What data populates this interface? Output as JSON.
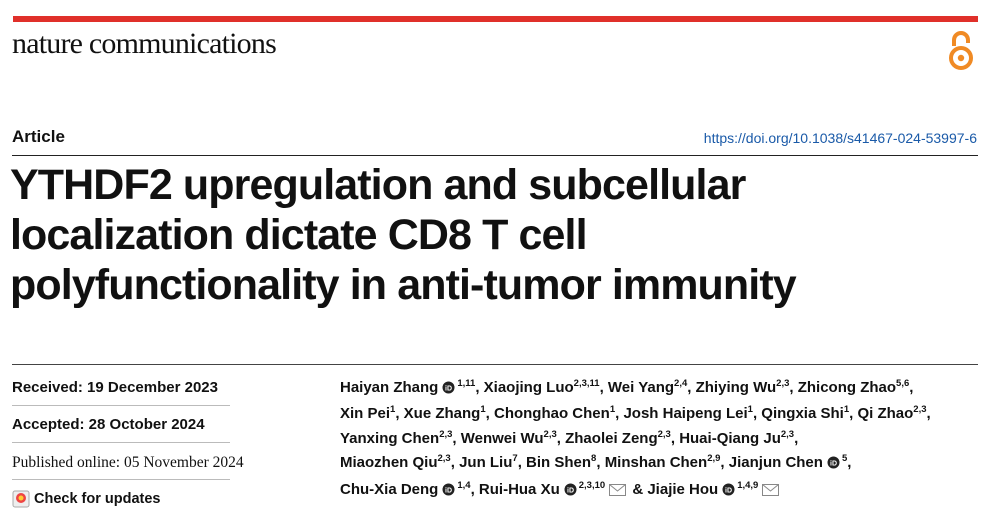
{
  "journal": "nature communications",
  "article_type": "Article",
  "doi": "https://doi.org/10.1038/s41467-024-53997-6",
  "title_lines": [
    "YTHDF2 upregulation and subcellular",
    "localization dictate CD8 T cell",
    "polyfunctionality in anti-tumor immunity"
  ],
  "received": "Received: 19 December 2023",
  "accepted": "Accepted: 28 October 2024",
  "published": "Published online: 05 November 2024",
  "check_updates": "Check for updates",
  "author_lines": [
    [
      {
        "name": "Haiyan Zhang",
        "orcid": true,
        "affiliations": "1,11",
        "separator": ", "
      },
      {
        "name": "Xiaojing Luo",
        "affiliations": "2,3,11",
        "separator": ", "
      },
      {
        "name": "Wei Yang",
        "affiliations": "2,4",
        "separator": ", "
      },
      {
        "name": "Zhiying Wu",
        "affiliations": "2,3",
        "separator": ", "
      },
      {
        "name": "Zhicong Zhao",
        "affiliations": "5,6",
        "separator": ","
      }
    ],
    [
      {
        "name": "Xin Pei",
        "affiliations": "1",
        "separator": ", "
      },
      {
        "name": "Xue Zhang",
        "affiliations": "1",
        "separator": ", "
      },
      {
        "name": "Chonghao Chen",
        "affiliations": "1",
        "separator": ", "
      },
      {
        "name": "Josh Haipeng Lei",
        "affiliations": "1",
        "separator": ", "
      },
      {
        "name": "Qingxia Shi",
        "affiliations": "1",
        "separator": ", "
      },
      {
        "name": "Qi Zhao",
        "affiliations": "2,3",
        "separator": ","
      }
    ],
    [
      {
        "name": "Yanxing Chen",
        "affiliations": "2,3",
        "separator": ", "
      },
      {
        "name": "Wenwei Wu",
        "affiliations": "2,3",
        "separator": ", "
      },
      {
        "name": "Zhaolei Zeng",
        "affiliations": "2,3",
        "separator": ", "
      },
      {
        "name": "Huai-Qiang Ju",
        "affiliations": "2,3",
        "separator": ","
      }
    ],
    [
      {
        "name": "Miaozhen Qiu",
        "affiliations": "2,3",
        "separator": ", "
      },
      {
        "name": "Jun Liu",
        "affiliations": "7",
        "separator": ", "
      },
      {
        "name": "Bin Shen",
        "affiliations": "8",
        "separator": ", "
      },
      {
        "name": "Minshan Chen",
        "affiliations": "2,9",
        "separator": ", "
      },
      {
        "name": "Jianjun Chen",
        "orcid": true,
        "affiliations": "5",
        "separator": ","
      }
    ],
    [
      {
        "name": "Chu-Xia Deng",
        "orcid": true,
        "affiliations": "1,4",
        "separator": ", "
      },
      {
        "name": "Rui-Hua Xu",
        "orcid": true,
        "affiliations": "2,3,10",
        "email": true,
        "separator": " & "
      },
      {
        "name": "Jiajie Hou",
        "orcid": true,
        "affiliations": "1,4,9",
        "email": true
      }
    ]
  ]
}
